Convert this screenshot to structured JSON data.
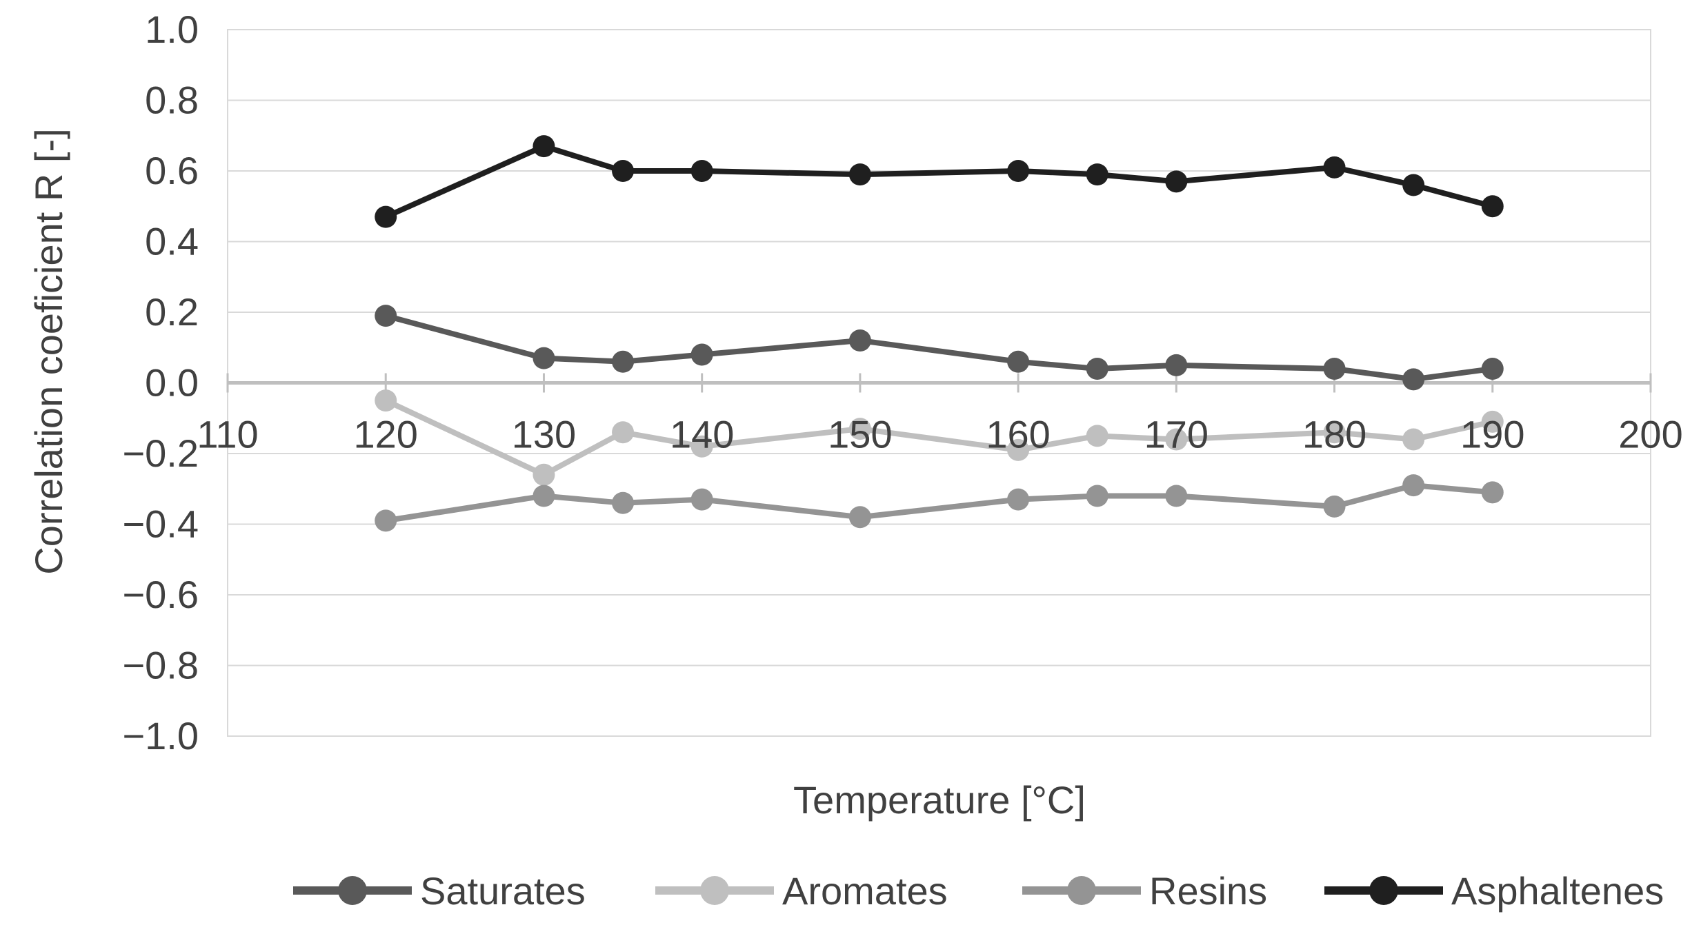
{
  "chart_data": {
    "type": "line",
    "title": "",
    "xlabel": "Temperature [°C]",
    "ylabel": "Correlation coeficient R [-]",
    "xlim": [
      110,
      200
    ],
    "ylim": [
      -1.0,
      1.0
    ],
    "x_tick_step": 10,
    "y_tick_step": 0.2,
    "grid": "horizontal",
    "legend_position": "bottom",
    "x": [
      120,
      130,
      135,
      140,
      150,
      160,
      165,
      170,
      180,
      185,
      190
    ],
    "xtick_labels": [
      "110",
      "120",
      "130",
      "140",
      "150",
      "160",
      "170",
      "180",
      "190",
      "200"
    ],
    "ytick_labels": [
      "1.0",
      "0.8",
      "0.6",
      "0.4",
      "0.2",
      "0.0",
      "−0.2",
      "−0.4",
      "−0.6",
      "−0.8",
      "−1.0"
    ],
    "series": [
      {
        "name": "Saturates",
        "color": "#595959",
        "values": [
          0.19,
          0.07,
          0.06,
          0.08,
          0.12,
          0.06,
          0.04,
          0.05,
          0.04,
          0.01,
          0.04
        ]
      },
      {
        "name": "Aromates",
        "color": "#bfbfbf",
        "values": [
          -0.05,
          -0.26,
          -0.14,
          -0.18,
          -0.13,
          -0.19,
          -0.15,
          -0.16,
          -0.14,
          -0.16,
          -0.11
        ]
      },
      {
        "name": "Resins",
        "color": "#949494",
        "values": [
          -0.39,
          -0.32,
          -0.34,
          -0.33,
          -0.38,
          -0.33,
          -0.32,
          -0.32,
          -0.35,
          -0.29,
          -0.31
        ]
      },
      {
        "name": "Asphaltenes",
        "color": "#1f1f1f",
        "values": [
          0.47,
          0.67,
          0.6,
          0.6,
          0.59,
          0.6,
          0.59,
          0.57,
          0.61,
          0.56,
          0.5
        ]
      }
    ]
  },
  "colors": {
    "gridline": "#d9d9d9",
    "zero_axis": "#bfbfbf",
    "plot_border": "#d9d9d9",
    "tick_text": "#404040",
    "title_text": "#404040",
    "background": "#ffffff"
  }
}
